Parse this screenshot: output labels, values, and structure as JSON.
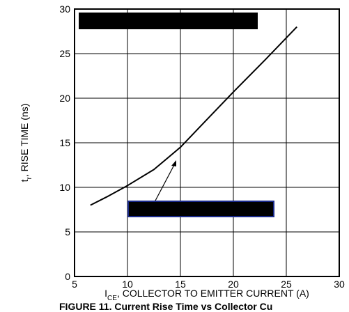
{
  "chart_data": {
    "type": "line",
    "xlabel": {
      "main": "I",
      "sub": "CE",
      "rest": ", COLLECTOR TO EMITTER CURRENT (A)"
    },
    "ylabel": {
      "main": "t",
      "sub": "r",
      "rest": ", RISE TIME (ns)"
    },
    "caption": "FIGURE 11. Current Rise Time vs Collector Cu",
    "x": [
      6.5,
      8,
      10,
      12.5,
      15,
      17.5,
      20,
      23,
      26
    ],
    "series": [
      {
        "values": [
          8,
          8.9,
          10.2,
          12,
          14.5,
          17.6,
          20.7,
          24.3,
          28
        ],
        "color": "#000000"
      }
    ],
    "xlim": [
      5,
      30
    ],
    "xticks": [
      5,
      10,
      15,
      20,
      25,
      30
    ],
    "ylim": [
      0,
      30
    ],
    "yticks": [
      0,
      5,
      10,
      15,
      20,
      25,
      30
    ],
    "grid": true
  }
}
